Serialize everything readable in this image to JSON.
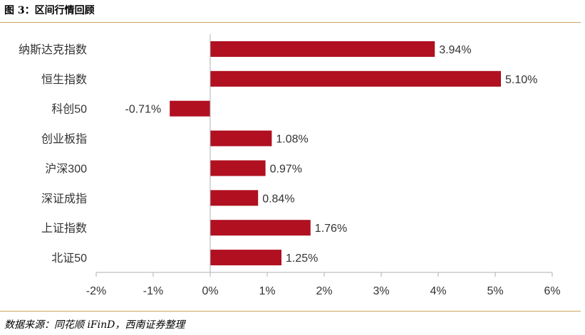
{
  "figure": {
    "header": "图 3：区间行情回顾",
    "source": "数据来源：同花顺 iFinD，西南证券整理"
  },
  "colors": {
    "bar": "#b01020",
    "axis": "#b0b0b0",
    "rule": "#c9a45c"
  },
  "chart_data": {
    "type": "bar",
    "orientation": "horizontal",
    "categories": [
      "纳斯达克指数",
      "恒生指数",
      "科创50",
      "创业板指",
      "沪深300",
      "深证成指",
      "上证指数",
      "北证50"
    ],
    "series": [
      {
        "values": [
          3.94,
          5.1,
          -0.71,
          1.08,
          0.97,
          0.84,
          1.76,
          1.25
        ]
      }
    ],
    "data_labels": [
      "3.94%",
      "5.10%",
      "-0.71%",
      "1.08%",
      "0.97%",
      "0.84%",
      "1.76%",
      "1.25%"
    ],
    "xlim": [
      -2,
      6
    ],
    "xticks": [
      -2,
      -1,
      0,
      1,
      2,
      3,
      4,
      5,
      6
    ],
    "xtick_labels": [
      "-2%",
      "-1%",
      "0%",
      "1%",
      "2%",
      "3%",
      "4%",
      "5%",
      "6%"
    ],
    "grid": false,
    "legend": "none"
  }
}
